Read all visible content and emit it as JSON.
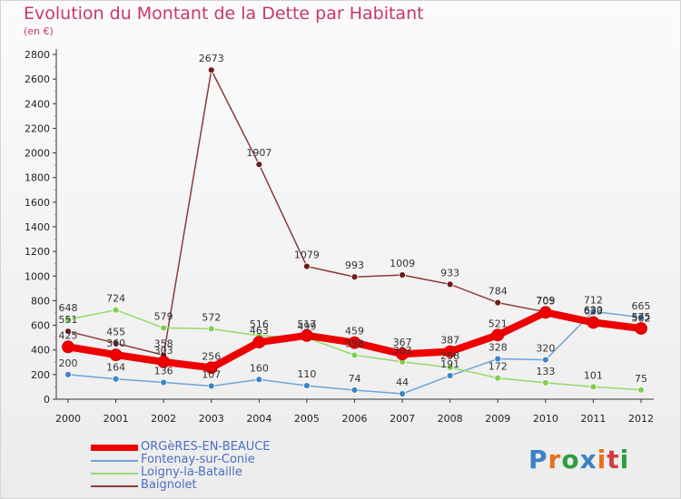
{
  "header": {
    "title": "Evolution du Montant de la Dette par Habitant",
    "subtitle": "(en €)"
  },
  "logo": {
    "text": "Proxiti",
    "letter_colors": [
      "#3b82c4",
      "#e8721c",
      "#2e9e3e",
      "#3b82c4",
      "#e8721c",
      "#d63b3b",
      "#2e9e3e"
    ]
  },
  "colors": {
    "title": "#c8376c",
    "legend_text": "#4a6fc0",
    "axis": "#333333"
  },
  "chart_data": {
    "type": "line",
    "title": "Evolution du Montant de la Dette par Habitant",
    "ylabel": "(en €)",
    "xlabel": "",
    "x": [
      "2000",
      "2001",
      "2002",
      "2003",
      "2004",
      "2005",
      "2006",
      "2007",
      "2008",
      "2009",
      "2010",
      "2011",
      "2012"
    ],
    "ylim": [
      0,
      2800
    ],
    "yticks": [
      "0",
      "200",
      "400",
      "600",
      "800",
      "1000",
      "1200",
      "1400",
      "1600",
      "1800",
      "2000",
      "2200",
      "2400",
      "2600",
      "2800"
    ],
    "grid": false,
    "legend_position": "bottom-left",
    "series": [
      {
        "name": "ORGèRES-EN-BEAUCE",
        "color": "#ee0000",
        "marker": "#ee0000",
        "width": 8,
        "values": [
          425,
          360,
          303,
          256,
          463,
          517,
          459,
          367,
          387,
          521,
          705,
          623,
          575
        ],
        "labels": [
          "425",
          "360",
          "303",
          "256",
          "463",
          "517",
          "459",
          "367",
          "387",
          "521",
          "705",
          "623",
          "575"
        ]
      },
      {
        "name": "Fontenay-sur-Conie",
        "color": "#6fa3d8",
        "marker": "#3d86c6",
        "width": 1.5,
        "values": [
          200,
          164,
          136,
          107,
          160,
          110,
          74,
          44,
          191,
          328,
          320,
          712,
          665
        ],
        "labels": [
          "200",
          "164",
          "136",
          "107",
          "160",
          "110",
          "74",
          "44",
          "191",
          "328",
          "320",
          "712",
          "665"
        ]
      },
      {
        "name": "Loigny-la-Bataille",
        "color": "#95d86a",
        "marker": "#83cd4f",
        "width": 1.5,
        "values": [
          648,
          724,
          579,
          572,
          516,
          499,
          358,
          303,
          258,
          172,
          133,
          101,
          75
        ],
        "labels": [
          "648",
          "724",
          "579",
          "572",
          "516",
          "499",
          "358",
          "303",
          "258",
          "172",
          "133",
          "101",
          "75"
        ]
      },
      {
        "name": "Baignolet",
        "color": "#8b3a3a",
        "marker": "#6b1c1c",
        "width": 1.5,
        "values": [
          551,
          455,
          358,
          2673,
          1907,
          1079,
          993,
          1009,
          933,
          784,
          709,
          630,
          562
        ],
        "labels": [
          "551",
          "455",
          "358",
          "2673",
          "1907",
          "1079",
          "993",
          "1009",
          "933",
          "784",
          "709",
          "630",
          "562"
        ]
      }
    ]
  }
}
